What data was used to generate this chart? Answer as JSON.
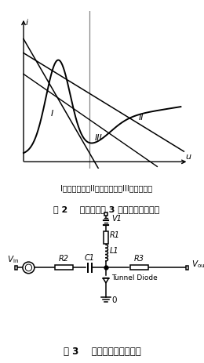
{
  "fig2_subtitle": "I：单稳触发；II：双稳触发；III：多谐振荡",
  "fig2_title": "图 2    隧道二极管 3 种工作方式负载线",
  "fig3_title": "图 3    隧道二极管整形电路",
  "bg_color": "#ffffff",
  "line_color": "#000000"
}
